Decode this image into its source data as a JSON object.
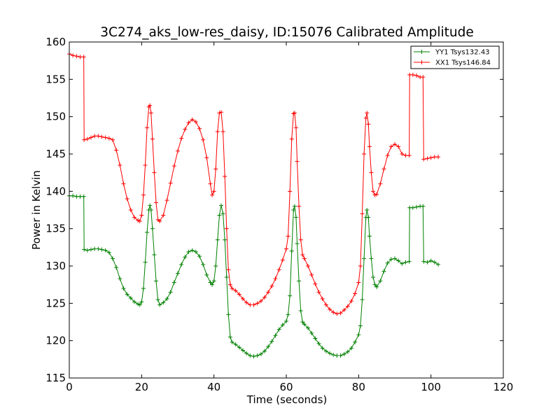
{
  "chart_data": {
    "type": "line",
    "title": "3C274_aks_low-res_daisy, ID:15076 Calibrated Amplitude",
    "xlabel": "Time (seconds)",
    "ylabel": "Power in Kelvin",
    "xlim": [
      0,
      120
    ],
    "ylim": [
      115,
      160
    ],
    "xticks": [
      0,
      20,
      40,
      60,
      80,
      100,
      120
    ],
    "yticks": [
      115,
      120,
      125,
      130,
      135,
      140,
      145,
      150,
      155,
      160
    ],
    "grid": false,
    "legend_position": "top-right",
    "marker": "+",
    "series": [
      {
        "name": "YY1 Tsys132.43",
        "color": "#008000",
        "points": [
          [
            0,
            139.4
          ],
          [
            1,
            139.4
          ],
          [
            2,
            139.3
          ],
          [
            3,
            139.3
          ],
          [
            4,
            139.3
          ],
          [
            4.1,
            132.2
          ],
          [
            5,
            132.1
          ],
          [
            6,
            132.2
          ],
          [
            7,
            132.3
          ],
          [
            8,
            132.3
          ],
          [
            9,
            132.2
          ],
          [
            10,
            132.1
          ],
          [
            11,
            131.8
          ],
          [
            12,
            131
          ],
          [
            13,
            129.8
          ],
          [
            14,
            128.3
          ],
          [
            15,
            127
          ],
          [
            16,
            126.2
          ],
          [
            17,
            125.7
          ],
          [
            18,
            125.2
          ],
          [
            19,
            124.9
          ],
          [
            19.5,
            124.8
          ],
          [
            20,
            125.2
          ],
          [
            20.5,
            127
          ],
          [
            21,
            130.5
          ],
          [
            21.5,
            134.5
          ],
          [
            22,
            137.5
          ],
          [
            22.3,
            138.1
          ],
          [
            22.6,
            137.5
          ],
          [
            23,
            135
          ],
          [
            23.5,
            131.5
          ],
          [
            24,
            128
          ],
          [
            24.5,
            125.5
          ],
          [
            25,
            124.8
          ],
          [
            26,
            125.1
          ],
          [
            27,
            125.6
          ],
          [
            28,
            126.5
          ],
          [
            29,
            127.8
          ],
          [
            30,
            129
          ],
          [
            31,
            130.2
          ],
          [
            32,
            131.2
          ],
          [
            33,
            131.9
          ],
          [
            34,
            132.1
          ],
          [
            35,
            131.9
          ],
          [
            36,
            131.3
          ],
          [
            37,
            130.2
          ],
          [
            38,
            128.8
          ],
          [
            39,
            127.8
          ],
          [
            39.5,
            127.5
          ],
          [
            40,
            128
          ],
          [
            40.5,
            130
          ],
          [
            41,
            133.5
          ],
          [
            41.5,
            136.8
          ],
          [
            42,
            138.1
          ],
          [
            42.5,
            137
          ],
          [
            43,
            133.5
          ],
          [
            43.5,
            128.5
          ],
          [
            44,
            123.5
          ],
          [
            44.5,
            120.5
          ],
          [
            45,
            119.8
          ],
          [
            46,
            119.5
          ],
          [
            47,
            119.1
          ],
          [
            48,
            118.7
          ],
          [
            49,
            118.3
          ],
          [
            50,
            118
          ],
          [
            51,
            117.9
          ],
          [
            52,
            118
          ],
          [
            53,
            118.2
          ],
          [
            54,
            118.6
          ],
          [
            55,
            119.2
          ],
          [
            56,
            119.9
          ],
          [
            57,
            120.7
          ],
          [
            58,
            121.5
          ],
          [
            59,
            122.1
          ],
          [
            60,
            122.6
          ],
          [
            60.5,
            123.5
          ],
          [
            61,
            126
          ],
          [
            61.5,
            132
          ],
          [
            62,
            137.5
          ],
          [
            62.3,
            138
          ],
          [
            62.7,
            136.5
          ],
          [
            63,
            133
          ],
          [
            63.5,
            128
          ],
          [
            64,
            124
          ],
          [
            64.5,
            122.5
          ],
          [
            65,
            122.2
          ],
          [
            66,
            121.7
          ],
          [
            67,
            121
          ],
          [
            68,
            120.3
          ],
          [
            69,
            119.6
          ],
          [
            70,
            119
          ],
          [
            71,
            118.6
          ],
          [
            72,
            118.3
          ],
          [
            73,
            118.1
          ],
          [
            74,
            118
          ],
          [
            75,
            118
          ],
          [
            76,
            118.2
          ],
          [
            77,
            118.5
          ],
          [
            78,
            119
          ],
          [
            79,
            119.8
          ],
          [
            80,
            120.8
          ],
          [
            80.5,
            122
          ],
          [
            81,
            125.5
          ],
          [
            81.5,
            131
          ],
          [
            82,
            136.5
          ],
          [
            82.3,
            137.5
          ],
          [
            82.7,
            136.5
          ],
          [
            83,
            134
          ],
          [
            83.5,
            131
          ],
          [
            84,
            128.5
          ],
          [
            84.5,
            127.5
          ],
          [
            85,
            127.2
          ],
          [
            86,
            128
          ],
          [
            87,
            129.3
          ],
          [
            88,
            130.4
          ],
          [
            89,
            130.9
          ],
          [
            90,
            131
          ],
          [
            91,
            130.7
          ],
          [
            92,
            130.3
          ],
          [
            93,
            130.5
          ],
          [
            94,
            130.6
          ],
          [
            94.1,
            137.8
          ],
          [
            95,
            137.8
          ],
          [
            96,
            137.9
          ],
          [
            97,
            138
          ],
          [
            97.8,
            138
          ],
          [
            98,
            130.6
          ],
          [
            99,
            130.5
          ],
          [
            100,
            130.7
          ],
          [
            101,
            130.5
          ],
          [
            102,
            130.2
          ]
        ]
      },
      {
        "name": "XX1 Tsys146.84",
        "color": "#ff0000",
        "points": [
          [
            0,
            158.4
          ],
          [
            1,
            158.2
          ],
          [
            2,
            158.1
          ],
          [
            3,
            158
          ],
          [
            4,
            158
          ],
          [
            4.1,
            146.9
          ],
          [
            5,
            147
          ],
          [
            6,
            147.2
          ],
          [
            7,
            147.4
          ],
          [
            8,
            147.4
          ],
          [
            9,
            147.3
          ],
          [
            10,
            147.2
          ],
          [
            11,
            147.1
          ],
          [
            12,
            146.9
          ],
          [
            13,
            145.5
          ],
          [
            14,
            143.5
          ],
          [
            15,
            141
          ],
          [
            16,
            139
          ],
          [
            17,
            137.5
          ],
          [
            18,
            136.5
          ],
          [
            19,
            136.1
          ],
          [
            19.5,
            136
          ],
          [
            20,
            136.8
          ],
          [
            20.5,
            139.5
          ],
          [
            21,
            143.5
          ],
          [
            21.5,
            148.5
          ],
          [
            22,
            151.3
          ],
          [
            22.3,
            151.5
          ],
          [
            22.6,
            150.5
          ],
          [
            23,
            147
          ],
          [
            23.5,
            142.5
          ],
          [
            24,
            138.5
          ],
          [
            24.5,
            136.2
          ],
          [
            25,
            136
          ],
          [
            26,
            136.8
          ],
          [
            27,
            138.8
          ],
          [
            28,
            141.1
          ],
          [
            29,
            143.4
          ],
          [
            30,
            145.4
          ],
          [
            31,
            147.1
          ],
          [
            32,
            148.3
          ],
          [
            33,
            149.2
          ],
          [
            34,
            149.6
          ],
          [
            35,
            149.3
          ],
          [
            36,
            148.4
          ],
          [
            37,
            146.9
          ],
          [
            38,
            144.5
          ],
          [
            39,
            141
          ],
          [
            39.5,
            139.5
          ],
          [
            40,
            140
          ],
          [
            40.5,
            143
          ],
          [
            41,
            148
          ],
          [
            41.5,
            150.5
          ],
          [
            42,
            150.6
          ],
          [
            42.5,
            148
          ],
          [
            43,
            142
          ],
          [
            43.5,
            135
          ],
          [
            44,
            129.5
          ],
          [
            44.5,
            127.5
          ],
          [
            45,
            127
          ],
          [
            46,
            126.7
          ],
          [
            47,
            126.2
          ],
          [
            48,
            125.6
          ],
          [
            49,
            125.1
          ],
          [
            50,
            124.8
          ],
          [
            51,
            124.8
          ],
          [
            52,
            125
          ],
          [
            53,
            125.3
          ],
          [
            54,
            125.8
          ],
          [
            55,
            126.5
          ],
          [
            56,
            127.3
          ],
          [
            57,
            128.3
          ],
          [
            58,
            129.5
          ],
          [
            59,
            130.8
          ],
          [
            60,
            132.3
          ],
          [
            60.5,
            134
          ],
          [
            61,
            140
          ],
          [
            61.5,
            147
          ],
          [
            62,
            150.4
          ],
          [
            62.3,
            150.5
          ],
          [
            62.7,
            148.5
          ],
          [
            63,
            144
          ],
          [
            63.5,
            138
          ],
          [
            64,
            133.5
          ],
          [
            64.5,
            131.5
          ],
          [
            65,
            131
          ],
          [
            66,
            130
          ],
          [
            67,
            128.8
          ],
          [
            68,
            127.6
          ],
          [
            69,
            126.5
          ],
          [
            70,
            125.6
          ],
          [
            71,
            124.8
          ],
          [
            72,
            124.2
          ],
          [
            73,
            123.8
          ],
          [
            74,
            123.6
          ],
          [
            75,
            123.7
          ],
          [
            76,
            124.1
          ],
          [
            77,
            124.6
          ],
          [
            78,
            125.3
          ],
          [
            79,
            126.3
          ],
          [
            80,
            127.8
          ],
          [
            80.5,
            130
          ],
          [
            81,
            137
          ],
          [
            81.5,
            145
          ],
          [
            82,
            149.8
          ],
          [
            82.3,
            150.5
          ],
          [
            82.7,
            149
          ],
          [
            83,
            146
          ],
          [
            83.5,
            142.5
          ],
          [
            84,
            140
          ],
          [
            84.5,
            139.5
          ],
          [
            85,
            139.6
          ],
          [
            86,
            141
          ],
          [
            87,
            143
          ],
          [
            88,
            144.8
          ],
          [
            89,
            146
          ],
          [
            90,
            146.3
          ],
          [
            91,
            146
          ],
          [
            92,
            145
          ],
          [
            93,
            144.8
          ],
          [
            94,
            144.8
          ],
          [
            94.1,
            155.6
          ],
          [
            95,
            155.6
          ],
          [
            96,
            155.5
          ],
          [
            97,
            155.3
          ],
          [
            97.8,
            155.3
          ],
          [
            98,
            144.3
          ],
          [
            99,
            144.4
          ],
          [
            100,
            144.5
          ],
          [
            101,
            144.6
          ],
          [
            102,
            144.6
          ]
        ]
      }
    ]
  }
}
